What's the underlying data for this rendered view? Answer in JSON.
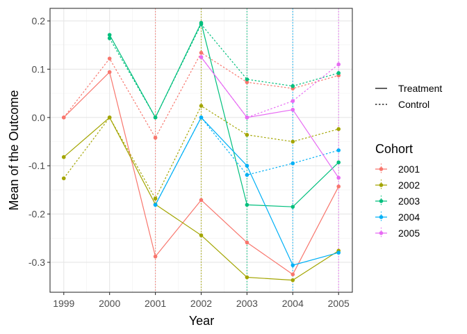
{
  "chart_data": {
    "type": "line",
    "xlabel": "Year",
    "ylabel": "Mean of the Outcome",
    "x": [
      1999,
      2000,
      2001,
      2002,
      2003,
      2004,
      2005
    ],
    "x_ticks": [
      "1999",
      "2000",
      "2001",
      "2002",
      "2003",
      "2004",
      "2005"
    ],
    "y_ticks": [
      {
        "value": 0.2,
        "label": "0.2"
      },
      {
        "value": 0.1,
        "label": "0.1"
      },
      {
        "value": 0.0,
        "label": "0.0"
      },
      {
        "value": -0.1,
        "label": "-0.1"
      },
      {
        "value": -0.2,
        "label": "-0.2"
      },
      {
        "value": -0.3,
        "label": "-0.3"
      }
    ],
    "xlim": [
      1998.7,
      2005.3
    ],
    "ylim": [
      -0.362,
      0.226
    ],
    "grid": true,
    "legend_position": "right",
    "linetype_legend": {
      "entries": [
        {
          "label": "Treatment",
          "dash": "solid"
        },
        {
          "label": "Control",
          "dash": "dotted"
        }
      ]
    },
    "color_legend": {
      "title": "Cohort",
      "entries": [
        {
          "label": "2001",
          "color": "#F8766D"
        },
        {
          "label": "2002",
          "color": "#A3A500"
        },
        {
          "label": "2003",
          "color": "#00BF7D"
        },
        {
          "label": "2004",
          "color": "#00B0F6"
        },
        {
          "label": "2005",
          "color": "#E76BF3"
        }
      ]
    },
    "vlines": [
      {
        "x": 2001,
        "color": "#F8766D"
      },
      {
        "x": 2002,
        "color": "#A3A500"
      },
      {
        "x": 2003,
        "color": "#00BF7D"
      },
      {
        "x": 2004,
        "color": "#00B0F6"
      },
      {
        "x": 2005,
        "color": "#E76BF3"
      }
    ],
    "series": [
      {
        "cohort": "2001",
        "group": "Treatment",
        "color": "#F8766D",
        "x": [
          1999,
          2000,
          2001,
          2002,
          2003,
          2004,
          2005
        ],
        "values": [
          0.0,
          0.094,
          -0.288,
          -0.171,
          -0.259,
          -0.325,
          -0.143
        ]
      },
      {
        "cohort": "2001",
        "group": "Control",
        "color": "#F8766D",
        "x": [
          1999,
          2000,
          2001,
          2002,
          2003,
          2004,
          2005
        ],
        "values": [
          0.0,
          0.122,
          -0.042,
          0.134,
          0.073,
          0.06,
          0.087
        ]
      },
      {
        "cohort": "2002",
        "group": "Treatment",
        "color": "#A3A500",
        "x": [
          1999,
          2000,
          2001,
          2002,
          2003,
          2004,
          2005
        ],
        "values": [
          -0.082,
          0.0,
          -0.18,
          -0.244,
          -0.331,
          -0.337,
          -0.276
        ]
      },
      {
        "cohort": "2002",
        "group": "Control",
        "color": "#A3A500",
        "x": [
          1999,
          2000,
          2001,
          2002,
          2003,
          2004,
          2005
        ],
        "values": [
          -0.126,
          0.0,
          -0.168,
          0.024,
          -0.036,
          -0.05,
          -0.024
        ]
      },
      {
        "cohort": "2003",
        "group": "Treatment",
        "color": "#00BF7D",
        "x": [
          2000,
          2001,
          2002,
          2003,
          2004,
          2005
        ],
        "values": [
          0.171,
          0.0,
          0.196,
          -0.181,
          -0.185,
          -0.093
        ]
      },
      {
        "cohort": "2003",
        "group": "Control",
        "color": "#00BF7D",
        "x": [
          2000,
          2001,
          2002,
          2003,
          2004,
          2005
        ],
        "values": [
          0.164,
          0.0,
          0.193,
          0.079,
          0.065,
          0.092
        ]
      },
      {
        "cohort": "2004",
        "group": "Treatment",
        "color": "#00B0F6",
        "x": [
          2001,
          2002,
          2003,
          2004,
          2005
        ],
        "values": [
          -0.181,
          0.0,
          -0.1,
          -0.306,
          -0.28
        ]
      },
      {
        "cohort": "2004",
        "group": "Control",
        "color": "#00B0F6",
        "x": [
          2001,
          2002,
          2003,
          2004,
          2005
        ],
        "values": [
          -0.181,
          0.0,
          -0.119,
          -0.095,
          -0.068
        ]
      },
      {
        "cohort": "2005",
        "group": "Treatment",
        "color": "#E76BF3",
        "x": [
          2002,
          2003,
          2004,
          2005
        ],
        "values": [
          0.125,
          0.0,
          0.016,
          -0.125
        ]
      },
      {
        "cohort": "2005",
        "group": "Control",
        "color": "#E76BF3",
        "x": [
          2002,
          2003,
          2004,
          2005
        ],
        "values": [
          0.125,
          0.0,
          0.034,
          0.11
        ]
      }
    ]
  }
}
